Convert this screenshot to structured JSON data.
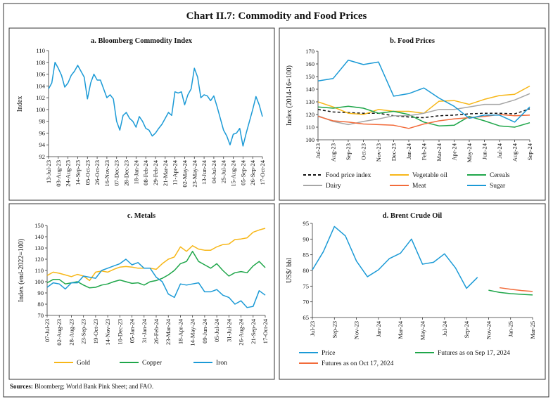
{
  "title": "Chart II.7: Commodity and Food Prices",
  "sources": {
    "label": "Sources:",
    "text": " Bloomberg; World Bank Pink Sheet; and FAO."
  },
  "colors": {
    "blue": "#1b9ad6",
    "gold": "#f7b718",
    "green": "#1fa64a",
    "gray": "#a6a6a6",
    "orange": "#f26b3a",
    "black": "#111111"
  },
  "chart_data": [
    {
      "id": "a",
      "type": "line",
      "title": "a. Bloomberg Commodity Index",
      "ylabel": "Index",
      "xlabel": "",
      "ylim": [
        92,
        110
      ],
      "ystep": 2,
      "xticks": [
        "13-Jul-23",
        "03-Aug-23",
        "24-Aug-23",
        "14-Sep-23",
        "05-Oct-23",
        "26-Oct-23",
        "16-Nov-23",
        "07-Dec-23",
        "28-Dec-23",
        "18-Jan-24",
        "08-Feb-24",
        "29-Feb-24",
        "21-Mar-24",
        "11-Apr-24",
        "02-May-24",
        "23-May-24",
        "13-Jun-24",
        "04-Jul-24",
        "25-Jul-24",
        "15-Aug-24",
        "05-Sep-24",
        "26-Sep-24",
        "17-Oct-24"
      ],
      "series": [
        {
          "color": "blue",
          "dash": false,
          "points": [
            [
              "2023-07-13",
              103.5
            ],
            [
              "2023-07-20",
              104.5
            ],
            [
              "2023-07-27",
              108
            ],
            [
              "2023-08-03",
              107
            ],
            [
              "2023-08-10",
              105.8
            ],
            [
              "2023-08-17",
              103.8
            ],
            [
              "2023-08-24",
              104.5
            ],
            [
              "2023-08-31",
              105.8
            ],
            [
              "2023-09-07",
              106.5
            ],
            [
              "2023-09-14",
              107.5
            ],
            [
              "2023-09-21",
              106.5
            ],
            [
              "2023-09-28",
              105.5
            ],
            [
              "2023-10-05",
              101.8
            ],
            [
              "2023-10-12",
              104.5
            ],
            [
              "2023-10-19",
              106
            ],
            [
              "2023-10-26",
              105
            ],
            [
              "2023-11-02",
              105
            ],
            [
              "2023-11-09",
              103.5
            ],
            [
              "2023-11-16",
              102
            ],
            [
              "2023-11-23",
              102.5
            ],
            [
              "2023-11-30",
              101.8
            ],
            [
              "2023-12-07",
              98
            ],
            [
              "2023-12-14",
              96.5
            ],
            [
              "2023-12-21",
              99
            ],
            [
              "2023-12-28",
              99.5
            ],
            [
              "2024-01-04",
              98.5
            ],
            [
              "2024-01-11",
              98
            ],
            [
              "2024-01-18",
              97
            ],
            [
              "2024-01-25",
              98.8
            ],
            [
              "2024-02-01",
              98
            ],
            [
              "2024-02-08",
              96.8
            ],
            [
              "2024-02-15",
              96.5
            ],
            [
              "2024-02-22",
              95.5
            ],
            [
              "2024-02-29",
              96
            ],
            [
              "2024-03-07",
              96.8
            ],
            [
              "2024-03-14",
              97.5
            ],
            [
              "2024-03-21",
              98.5
            ],
            [
              "2024-03-28",
              99.5
            ],
            [
              "2024-04-04",
              99
            ],
            [
              "2024-04-11",
              103
            ],
            [
              "2024-04-18",
              102.8
            ],
            [
              "2024-04-25",
              103
            ],
            [
              "2024-05-02",
              100.8
            ],
            [
              "2024-05-09",
              102.5
            ],
            [
              "2024-05-16",
              103.5
            ],
            [
              "2024-05-23",
              107
            ],
            [
              "2024-05-30",
              105.5
            ],
            [
              "2024-06-06",
              102
            ],
            [
              "2024-06-13",
              102.5
            ],
            [
              "2024-06-20",
              102.3
            ],
            [
              "2024-06-27",
              101.5
            ],
            [
              "2024-07-04",
              102.3
            ],
            [
              "2024-07-11",
              100.5
            ],
            [
              "2024-07-18",
              98.5
            ],
            [
              "2024-07-25",
              96.5
            ],
            [
              "2024-08-01",
              95.5
            ],
            [
              "2024-08-08",
              94
            ],
            [
              "2024-08-15",
              95.8
            ],
            [
              "2024-08-22",
              96
            ],
            [
              "2024-08-29",
              96.8
            ],
            [
              "2024-09-05",
              93.8
            ],
            [
              "2024-09-12",
              96
            ],
            [
              "2024-09-19",
              98
            ],
            [
              "2024-09-26",
              100
            ],
            [
              "2024-10-03",
              102.2
            ],
            [
              "2024-10-10",
              100.8
            ],
            [
              "2024-10-17",
              98.8
            ]
          ]
        }
      ]
    },
    {
      "id": "b",
      "type": "line",
      "title": "b. Food Prices",
      "ylabel": "Index (2014-16=100)",
      "xlabel": "",
      "ylim": [
        100,
        170
      ],
      "ystep": 10,
      "categories": [
        "Jul-23",
        "Aug-23",
        "Sep-23",
        "Oct-23",
        "Nov-23",
        "Dec-23",
        "Jan-24",
        "Feb-24",
        "Mar-24",
        "Apr-24",
        "May-24",
        "Jun-24",
        "Jul-24",
        "Aug-24",
        "Sep-24"
      ],
      "xticks": [
        "Jul-23",
        "Aug-23",
        "Sep-23",
        "Oct-23",
        "Nov-23",
        "Dec-23",
        "Jan-24",
        "Feb-24",
        "Mar-24",
        "Apr-24",
        "May-24",
        "Jun-24",
        "Jul-24",
        "Aug-24",
        "Sep-24"
      ],
      "legend": "bottom",
      "series": [
        {
          "name": "Food price index",
          "color": "black",
          "dash": true,
          "values": [
            124,
            122,
            121.5,
            121,
            121,
            119,
            118,
            117.5,
            119,
            119.5,
            120.5,
            121,
            121,
            120.5,
            124.5
          ]
        },
        {
          "name": "Vegetable oil",
          "color": "gold",
          "dash": false,
          "values": [
            130,
            126,
            121,
            120,
            124,
            122.5,
            122.5,
            121,
            130.5,
            131,
            128,
            132,
            135,
            136,
            142.5
          ]
        },
        {
          "name": "Cereals",
          "color": "green",
          "dash": false,
          "values": [
            126,
            125,
            126.5,
            125,
            121,
            122.5,
            120,
            114,
            111,
            111.5,
            118.5,
            115,
            111,
            110,
            113.5
          ]
        },
        {
          "name": "Dairy",
          "color": "gray",
          "dash": false,
          "values": [
            119,
            114.5,
            112,
            114.5,
            116.5,
            119,
            119,
            121,
            124,
            124,
            126,
            128,
            128,
            131.5,
            136.5
          ]
        },
        {
          "name": "Meat",
          "color": "orange",
          "dash": false,
          "values": [
            118.5,
            115,
            114,
            112.5,
            112,
            111.5,
            109,
            112.5,
            115,
            116.5,
            117.5,
            118.5,
            120,
            119,
            119.5
          ]
        },
        {
          "name": "Sugar",
          "color": "blue",
          "dash": false,
          "values": [
            146.5,
            148.5,
            163,
            159.5,
            161.5,
            134.5,
            136.5,
            141,
            133,
            126.5,
            117,
            119.5,
            119.5,
            114,
            126
          ]
        }
      ]
    },
    {
      "id": "c",
      "type": "line",
      "title": "c. Metals",
      "ylabel": "Index (end-2022=100)",
      "xlabel": "",
      "ylim": [
        70,
        150
      ],
      "ystep": 10,
      "xticks": [
        "07-Jul-23",
        "02-Aug-23",
        "28-Aug-23",
        "23-Sep-23",
        "19-Oct-23",
        "14-Nov-23",
        "10-Dec-23",
        "05-Jan-24",
        "31-Jan-24",
        "26-Feb-24",
        "23-Mar-24",
        "18-Apr-24",
        "14-May-24",
        "09-Jun-24",
        "05-Jul-24",
        "31-Jul-24",
        "26-Aug-24",
        "21-Sep-24",
        "17-Oct-24"
      ],
      "dates": [
        "2023-07-07",
        "2023-07-20",
        "2023-08-02",
        "2023-08-15",
        "2023-08-28",
        "2023-09-10",
        "2023-09-23",
        "2023-10-06",
        "2023-10-19",
        "2023-11-01",
        "2023-11-14",
        "2023-11-27",
        "2023-12-10",
        "2023-12-23",
        "2024-01-05",
        "2024-01-18",
        "2024-01-31",
        "2024-02-13",
        "2024-02-26",
        "2024-03-10",
        "2024-03-23",
        "2024-04-05",
        "2024-04-18",
        "2024-05-01",
        "2024-05-14",
        "2024-05-27",
        "2024-06-09",
        "2024-06-22",
        "2024-07-05",
        "2024-07-18",
        "2024-07-31",
        "2024-08-13",
        "2024-08-26",
        "2024-09-08",
        "2024-09-21",
        "2024-10-04",
        "2024-10-17"
      ],
      "legend": "bottom",
      "series": [
        {
          "name": "Gold",
          "color": "gold",
          "dash": false,
          "values": [
            105.5,
            108.5,
            107.5,
            106,
            104.5,
            106.5,
            105,
            101,
            108.5,
            109.5,
            108.5,
            111,
            113,
            113.5,
            113,
            112,
            112,
            112,
            111,
            116,
            120,
            122,
            131,
            127,
            132,
            129,
            128,
            128,
            131,
            133,
            133.5,
            137.5,
            138,
            139,
            144,
            146,
            147.5
          ]
        },
        {
          "name": "Copper",
          "color": "green",
          "dash": false,
          "values": [
            99,
            102,
            102,
            98,
            99,
            100,
            97,
            94.5,
            95,
            97,
            98,
            100,
            101.5,
            100,
            98.5,
            99,
            97,
            100,
            101,
            103,
            106,
            110,
            116,
            118,
            127,
            118,
            115,
            112,
            116,
            110,
            105,
            108,
            109,
            108,
            114,
            118,
            112.5
          ]
        },
        {
          "name": "Iron",
          "color": "blue",
          "dash": false,
          "values": [
            95,
            99,
            98,
            93.5,
            99,
            99,
            105,
            104,
            103,
            110,
            112,
            114,
            116,
            120,
            115,
            117,
            112,
            112,
            104,
            100,
            89,
            86,
            98,
            97,
            98,
            99,
            91,
            91,
            93,
            88,
            86,
            80,
            83,
            77,
            78,
            92,
            88
          ]
        }
      ]
    },
    {
      "id": "d",
      "type": "line",
      "title": "d. Brent Crude Oil",
      "ylabel": "US$/ bbl",
      "xlabel": "",
      "ylim": [
        65,
        95
      ],
      "ystep": 5,
      "categories": [
        "Jul-23",
        "Aug-23",
        "Sep-23",
        "Oct-23",
        "Nov-23",
        "Dec-23",
        "Jan-24",
        "Feb-24",
        "Mar-24",
        "Apr-24",
        "May-24",
        "Jun-24",
        "Jul-24",
        "Aug-24",
        "Sep-24",
        "Oct-24",
        "Nov-24",
        "Dec-24",
        "Jan-25",
        "Feb-25",
        "Mar-25"
      ],
      "xticks": [
        "Jul-23",
        "Sep-23",
        "Nov-23",
        "Jan-24",
        "Mar-24",
        "May-24",
        "Jul-24",
        "Sep-24",
        "Nov-24",
        "Jan-25",
        "Mar-25"
      ],
      "legend": "bottom",
      "series": [
        {
          "name": "Price",
          "color": "blue",
          "dash": false,
          "values": [
            80.2,
            86,
            94,
            91,
            83,
            78,
            80.2,
            83.8,
            85.5,
            90,
            82,
            82.6,
            85.3,
            80.8,
            74.3,
            77.8,
            null,
            null,
            null,
            null,
            null
          ]
        },
        {
          "name": "Futures as on Sep 17, 2024",
          "color": "green",
          "dash": false,
          "values": [
            null,
            null,
            null,
            null,
            null,
            null,
            null,
            null,
            null,
            null,
            null,
            null,
            null,
            null,
            null,
            null,
            73.7,
            73.0,
            72.6,
            72.4,
            72.2
          ]
        },
        {
          "name": "Futures as on Oct 17, 2024",
          "color": "orange",
          "dash": false,
          "values": [
            null,
            null,
            null,
            null,
            null,
            null,
            null,
            null,
            null,
            null,
            null,
            null,
            null,
            null,
            null,
            null,
            null,
            74.5,
            74.0,
            73.6,
            73.3
          ]
        }
      ]
    }
  ]
}
